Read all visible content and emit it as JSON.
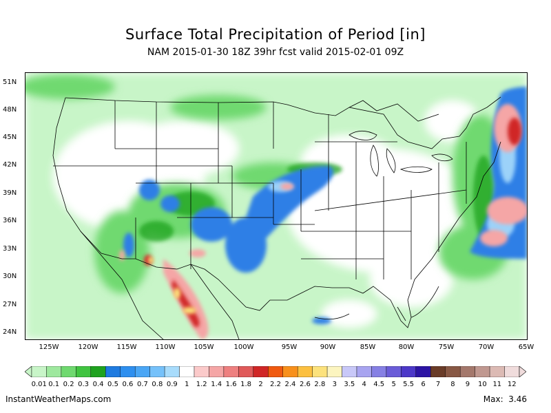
{
  "title": "Surface Total Precipitation of Period [in]",
  "subtitle": "NAM 2015-01-30 18Z 39hr fcst valid 2015-02-01 09Z",
  "lat_labels": [
    "51N",
    "48N",
    "45N",
    "42N",
    "39N",
    "36N",
    "33N",
    "30N",
    "27N",
    "24N"
  ],
  "lon_labels": [
    "125W",
    "120W",
    "115W",
    "110W",
    "105W",
    "100W",
    "95W",
    "90W",
    "85W",
    "80W",
    "75W",
    "70W",
    "65W"
  ],
  "legend": {
    "labels": [
      "0.01",
      "0.1",
      "0.2",
      "0.3",
      "0.4",
      "0.5",
      "0.6",
      "0.7",
      "0.8",
      "0.9",
      "1",
      "1.2",
      "1.4",
      "1.6",
      "1.8",
      "2",
      "2.2",
      "2.4",
      "2.6",
      "2.8",
      "3",
      "3.5",
      "4",
      "4.5",
      "5",
      "5.5",
      "6",
      "7",
      "8",
      "9",
      "10",
      "11",
      "12"
    ],
    "colors": [
      "#c8f5c8",
      "#9ee89e",
      "#6fd96f",
      "#40c440",
      "#1fa21f",
      "#1f7be0",
      "#2e8fef",
      "#4aa6f5",
      "#75c1fa",
      "#a8dcfc",
      "#ffffff",
      "#fbcaca",
      "#f5a6a6",
      "#ee8080",
      "#e05a5a",
      "#d02626",
      "#f05a10",
      "#f8901c",
      "#fcc040",
      "#fce27c",
      "#fcf5c0",
      "#c8c8f8",
      "#a8a4f0",
      "#8680e4",
      "#6a5cd8",
      "#4c38c8",
      "#2c14a4",
      "#6a3c28",
      "#885844",
      "#a4786c",
      "#c09890",
      "#dcbab4",
      "#f0dcdc"
    ]
  },
  "footer": {
    "site": "InstantWeatherMaps.com",
    "max_label": "Max:",
    "max_value": "3.46"
  },
  "colors": {
    "light_green": "#b4f0b4",
    "mid_green": "#5cd05c",
    "dark_green": "#1fa21f",
    "blue": "#2e7fe6",
    "light_blue": "#8cc8fa",
    "pink": "#f5a6a6",
    "red": "#d02626",
    "yellow": "#fce27c"
  }
}
